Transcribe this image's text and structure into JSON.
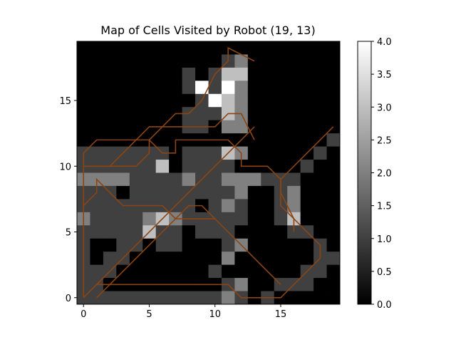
{
  "chart_data": {
    "type": "heatmap",
    "title": "Map of Cells Visited by Robot (19, 13)",
    "xlabel": "",
    "ylabel": "",
    "grid_cols": 20,
    "grid_rows": 20,
    "x_range": [
      -0.5,
      19.5
    ],
    "y_range": [
      -0.5,
      19.5
    ],
    "x_ticks": [
      0,
      5,
      10,
      15
    ],
    "y_ticks": [
      0,
      5,
      10,
      15
    ],
    "colorbar": {
      "range": [
        0.0,
        4.0
      ],
      "ticks": [
        "0.0",
        "0.5",
        "1.0",
        "1.5",
        "2.0",
        "2.5",
        "3.0",
        "3.5",
        "4.0"
      ],
      "colormap": "gray"
    },
    "grid": false,
    "path_color": "#8B4513",
    "visits_rows_top_to_bottom": [
      "00000000000000000000",
      "00000000000120000000",
      "00000000101330000000",
      "00000000141420000000",
      "00000000014320000000",
      "00000000111320000000",
      "00000000110220000000",
      "00000000000000000001",
      "11111110111320000010",
      "11111130111100000100",
      "22221111211222111000",
      "11101111111120012000",
      "11111111101210012000",
      "21111232111110013000",
      "11111311011100001100",
      "10011011000120000010",
      "10110000000200000011",
      "11100000001000000110",
      "11000000000120011100",
      "11111111111210100000"
    ],
    "paths": [
      [
        [
          0,
          0
        ],
        [
          0,
          11
        ],
        [
          1,
          12
        ],
        [
          5,
          12
        ],
        [
          6,
          11
        ],
        [
          7,
          11
        ],
        [
          7,
          12
        ],
        [
          11,
          12
        ],
        [
          12,
          11
        ],
        [
          12,
          10
        ],
        [
          13,
          10
        ],
        [
          14,
          10
        ],
        [
          15,
          9
        ],
        [
          15,
          8
        ],
        [
          16,
          6
        ],
        [
          16,
          5
        ]
      ],
      [
        [
          0,
          7
        ],
        [
          1,
          8
        ],
        [
          1,
          9
        ],
        [
          2,
          8
        ],
        [
          3,
          7
        ],
        [
          6,
          7
        ],
        [
          7,
          6
        ],
        [
          10,
          6
        ]
      ],
      [
        [
          0,
          10
        ],
        [
          4,
          10
        ],
        [
          5,
          11
        ],
        [
          5,
          12
        ],
        [
          6,
          13
        ],
        [
          7,
          14
        ],
        [
          8,
          14
        ],
        [
          9,
          15
        ],
        [
          10,
          17
        ],
        [
          11,
          18
        ],
        [
          11,
          19
        ],
        [
          13,
          18
        ]
      ],
      [
        [
          0,
          10
        ],
        [
          2,
          10
        ],
        [
          3,
          11
        ],
        [
          4,
          12
        ],
        [
          5,
          13
        ],
        [
          10,
          13
        ],
        [
          11,
          14
        ],
        [
          12,
          14
        ],
        [
          13,
          12
        ]
      ],
      [
        [
          1,
          0
        ],
        [
          2,
          1
        ],
        [
          3,
          2
        ],
        [
          5,
          4
        ],
        [
          7,
          6
        ],
        [
          8,
          7
        ],
        [
          9,
          7
        ],
        [
          10,
          6
        ],
        [
          11,
          5
        ],
        [
          12,
          4
        ],
        [
          13,
          3
        ],
        [
          14,
          2
        ],
        [
          15,
          1
        ]
      ],
      [
        [
          0,
          0
        ],
        [
          1,
          1
        ],
        [
          2,
          2
        ],
        [
          3,
          3
        ],
        [
          4,
          4
        ],
        [
          5,
          5
        ],
        [
          6,
          6
        ],
        [
          7,
          7
        ],
        [
          8,
          8
        ],
        [
          9,
          9
        ],
        [
          10,
          10
        ],
        [
          11,
          11
        ],
        [
          12,
          12
        ],
        [
          13,
          13
        ]
      ],
      [
        [
          1,
          1
        ],
        [
          11,
          1
        ],
        [
          12,
          0
        ],
        [
          13,
          0
        ],
        [
          14,
          0
        ],
        [
          15,
          0
        ],
        [
          16,
          1
        ],
        [
          17,
          2
        ],
        [
          18,
          3
        ],
        [
          18,
          4
        ],
        [
          17,
          5
        ],
        [
          16,
          6
        ],
        [
          15,
          7
        ],
        [
          15,
          9
        ],
        [
          16,
          10
        ],
        [
          17,
          11
        ],
        [
          18,
          12
        ],
        [
          19,
          13
        ]
      ]
    ]
  }
}
